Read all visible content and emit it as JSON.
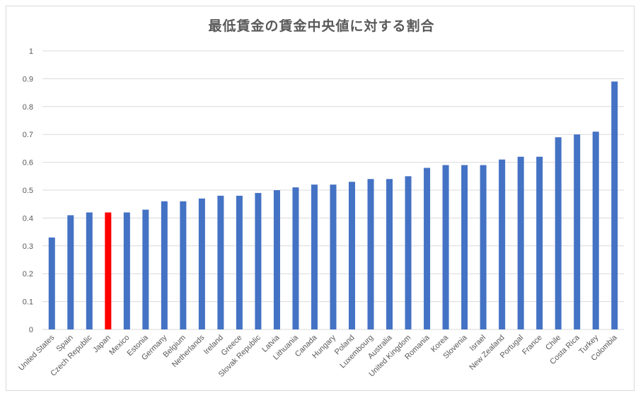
{
  "chart_data": {
    "type": "bar",
    "title": "最低賃金の賃金中央値に対する割合",
    "xlabel": "",
    "ylabel": "",
    "ylim": [
      0,
      1
    ],
    "yticks": [
      "0",
      "0.1",
      "0.2",
      "0.3",
      "0.4",
      "0.5",
      "0.6",
      "0.7",
      "0.8",
      "0.9",
      "1"
    ],
    "grid": true,
    "legend": "none",
    "categories": [
      "United States",
      "Spain",
      "Czech Republic",
      "Japan",
      "Mexico",
      "Estonia",
      "Germany",
      "Belgium",
      "Netherlands",
      "Ireland",
      "Greece",
      "Slovak Republic",
      "Latvia",
      "Lithuania",
      "Canada",
      "Hungary",
      "Poland",
      "Luxembourg",
      "Australia",
      "United Kingdom",
      "Romania",
      "Korea",
      "Slovenia",
      "Israel",
      "New Zealand",
      "Portugal",
      "France",
      "Chile",
      "Costa Rica",
      "Turkey",
      "Colombia"
    ],
    "values": [
      0.33,
      0.41,
      0.42,
      0.42,
      0.42,
      0.43,
      0.46,
      0.46,
      0.47,
      0.48,
      0.48,
      0.49,
      0.5,
      0.51,
      0.52,
      0.52,
      0.53,
      0.54,
      0.54,
      0.55,
      0.58,
      0.59,
      0.59,
      0.59,
      0.61,
      0.62,
      0.62,
      0.69,
      0.7,
      0.71,
      0.89
    ],
    "highlight": "Japan",
    "colors": {
      "bar": "#4472c4",
      "highlight": "#ff0000",
      "grid": "#d9d9d9",
      "axis": "#d9d9d9",
      "text": "#595959"
    }
  }
}
